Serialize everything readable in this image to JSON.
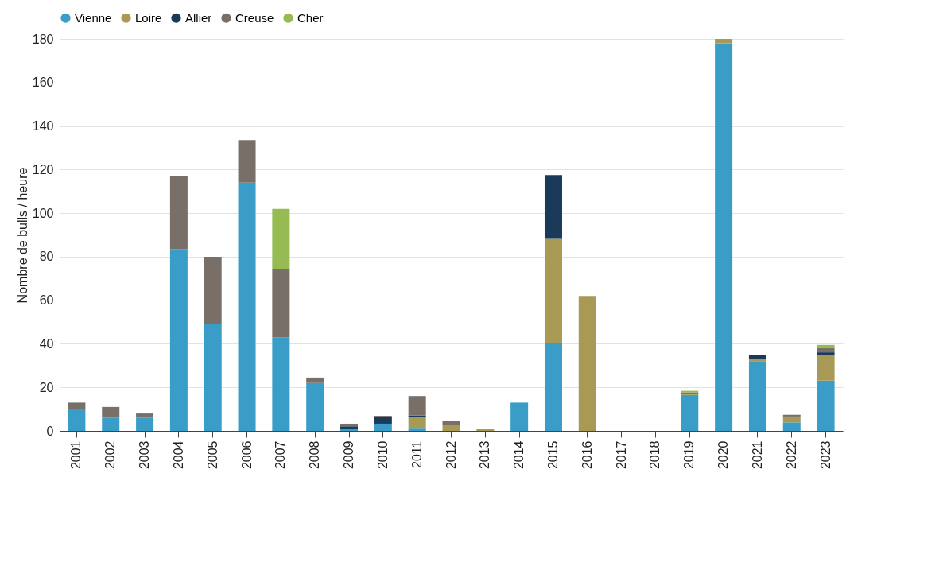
{
  "chart_data": {
    "type": "bar",
    "stacked": true,
    "ylabel": "Nombre de bulls / heure",
    "categories": [
      "2001",
      "2002",
      "2003",
      "2004",
      "2005",
      "2006",
      "2007",
      "2008",
      "2009",
      "2010",
      "2011",
      "2012",
      "2013",
      "2014",
      "2015",
      "2016",
      "2017",
      "2018",
      "2019",
      "2020",
      "2021",
      "2022",
      "2023"
    ],
    "series": [
      {
        "name": "Vienne",
        "color": "#3a9dc7",
        "values": [
          10,
          6,
          6,
          83.5,
          49,
          114,
          43,
          22,
          0.8,
          3.3,
          1.4,
          null,
          null,
          13,
          40.5,
          null,
          null,
          null,
          16.5,
          178,
          32,
          3.9,
          23.1
        ]
      },
      {
        "name": "Loire",
        "color": "#a89a55",
        "values": [
          null,
          null,
          null,
          null,
          null,
          null,
          null,
          null,
          null,
          null,
          4.9,
          2.9,
          1.1,
          null,
          48,
          62,
          null,
          null,
          0.5,
          2,
          1.2,
          2.7,
          11.8
        ]
      },
      {
        "name": "Allier",
        "color": "#1b3a5a",
        "values": [
          null,
          null,
          null,
          null,
          null,
          null,
          null,
          null,
          1.3,
          3.2,
          0.8,
          null,
          null,
          null,
          29,
          null,
          null,
          null,
          null,
          null,
          1.8,
          null,
          1.2
        ]
      },
      {
        "name": "Creuse",
        "color": "#787068",
        "values": [
          3,
          5,
          2,
          33.5,
          31,
          19.5,
          31.5,
          2.5,
          1.2,
          0.4,
          8.9,
          1.8,
          null,
          null,
          null,
          null,
          null,
          null,
          0.7,
          null,
          null,
          0.8,
          2.1
        ]
      },
      {
        "name": "Cher",
        "color": "#95bb52",
        "values": [
          null,
          null,
          null,
          null,
          null,
          null,
          27.5,
          null,
          null,
          null,
          null,
          null,
          null,
          null,
          null,
          null,
          null,
          null,
          0.7,
          null,
          null,
          null,
          1.3
        ]
      }
    ],
    "ylim": [
      0,
      180
    ],
    "yticks": [
      0,
      20,
      40,
      60,
      80,
      100,
      120,
      140,
      160,
      180
    ],
    "grid": "y",
    "legend": "top"
  }
}
